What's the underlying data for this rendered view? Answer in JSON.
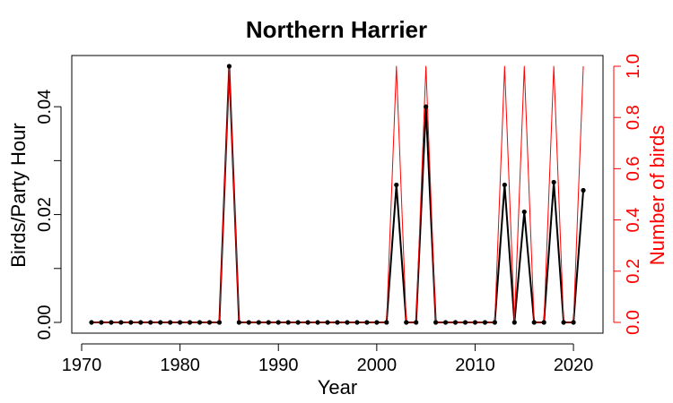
{
  "chart_data": {
    "type": "line",
    "title": "Northern Harrier",
    "xlabel": "Year",
    "ylabel": "Birds/Party Hour",
    "ylabel_right": "Number of birds",
    "xlim": [
      1970,
      2022
    ],
    "ylim": [
      0,
      0.0475
    ],
    "ylim_right": [
      0,
      1.0
    ],
    "x_ticks": [
      1970,
      1980,
      1990,
      2000,
      2010,
      2020
    ],
    "y_ticks": [
      {
        "value": 0.0,
        "label": "0.00"
      },
      {
        "value": 0.01,
        "label": ""
      },
      {
        "value": 0.02,
        "label": "0.02"
      },
      {
        "value": 0.03,
        "label": ""
      },
      {
        "value": 0.04,
        "label": "0.04"
      }
    ],
    "y_right_ticks": [
      "0.0",
      "0.2",
      "0.4",
      "0.6",
      "0.8",
      "1.0"
    ],
    "grid": false,
    "colors": {
      "left_series": "#000000",
      "right_series": "#ff0000"
    },
    "x": [
      1971,
      1972,
      1973,
      1974,
      1975,
      1976,
      1977,
      1978,
      1979,
      1980,
      1981,
      1982,
      1983,
      1984,
      1985,
      1986,
      1987,
      1988,
      1989,
      1990,
      1991,
      1992,
      1993,
      1994,
      1995,
      1996,
      1997,
      1998,
      1999,
      2000,
      2001,
      2002,
      2003,
      2004,
      2005,
      2006,
      2007,
      2008,
      2009,
      2010,
      2011,
      2012,
      2013,
      2014,
      2015,
      2016,
      2017,
      2018,
      2019,
      2020,
      2021
    ],
    "series": [
      {
        "axis": "left",
        "values": [
          0,
          0,
          0,
          0,
          0,
          0,
          0,
          0,
          0,
          0,
          0,
          0,
          0,
          0,
          0.0475,
          0,
          0,
          0,
          0,
          0,
          0,
          0,
          0,
          0,
          0,
          0,
          0,
          0,
          0,
          0,
          0,
          0.0255,
          0,
          0,
          0.04,
          0,
          0,
          0,
          0,
          0,
          0,
          0,
          0.0255,
          0,
          0.0205,
          0,
          0,
          0.026,
          0,
          0,
          0.0245
        ]
      },
      {
        "axis": "right",
        "values": [
          0,
          0,
          0,
          0,
          0,
          0,
          0,
          0,
          0,
          0,
          0,
          0,
          0,
          0,
          1,
          0,
          0,
          0,
          0,
          0,
          0,
          0,
          0,
          0,
          0,
          0,
          0,
          0,
          0,
          0,
          0,
          1,
          0,
          0,
          1,
          0,
          0,
          0,
          0,
          0,
          0,
          0,
          1,
          0,
          1,
          0,
          0,
          1,
          0,
          0,
          1
        ]
      }
    ]
  }
}
